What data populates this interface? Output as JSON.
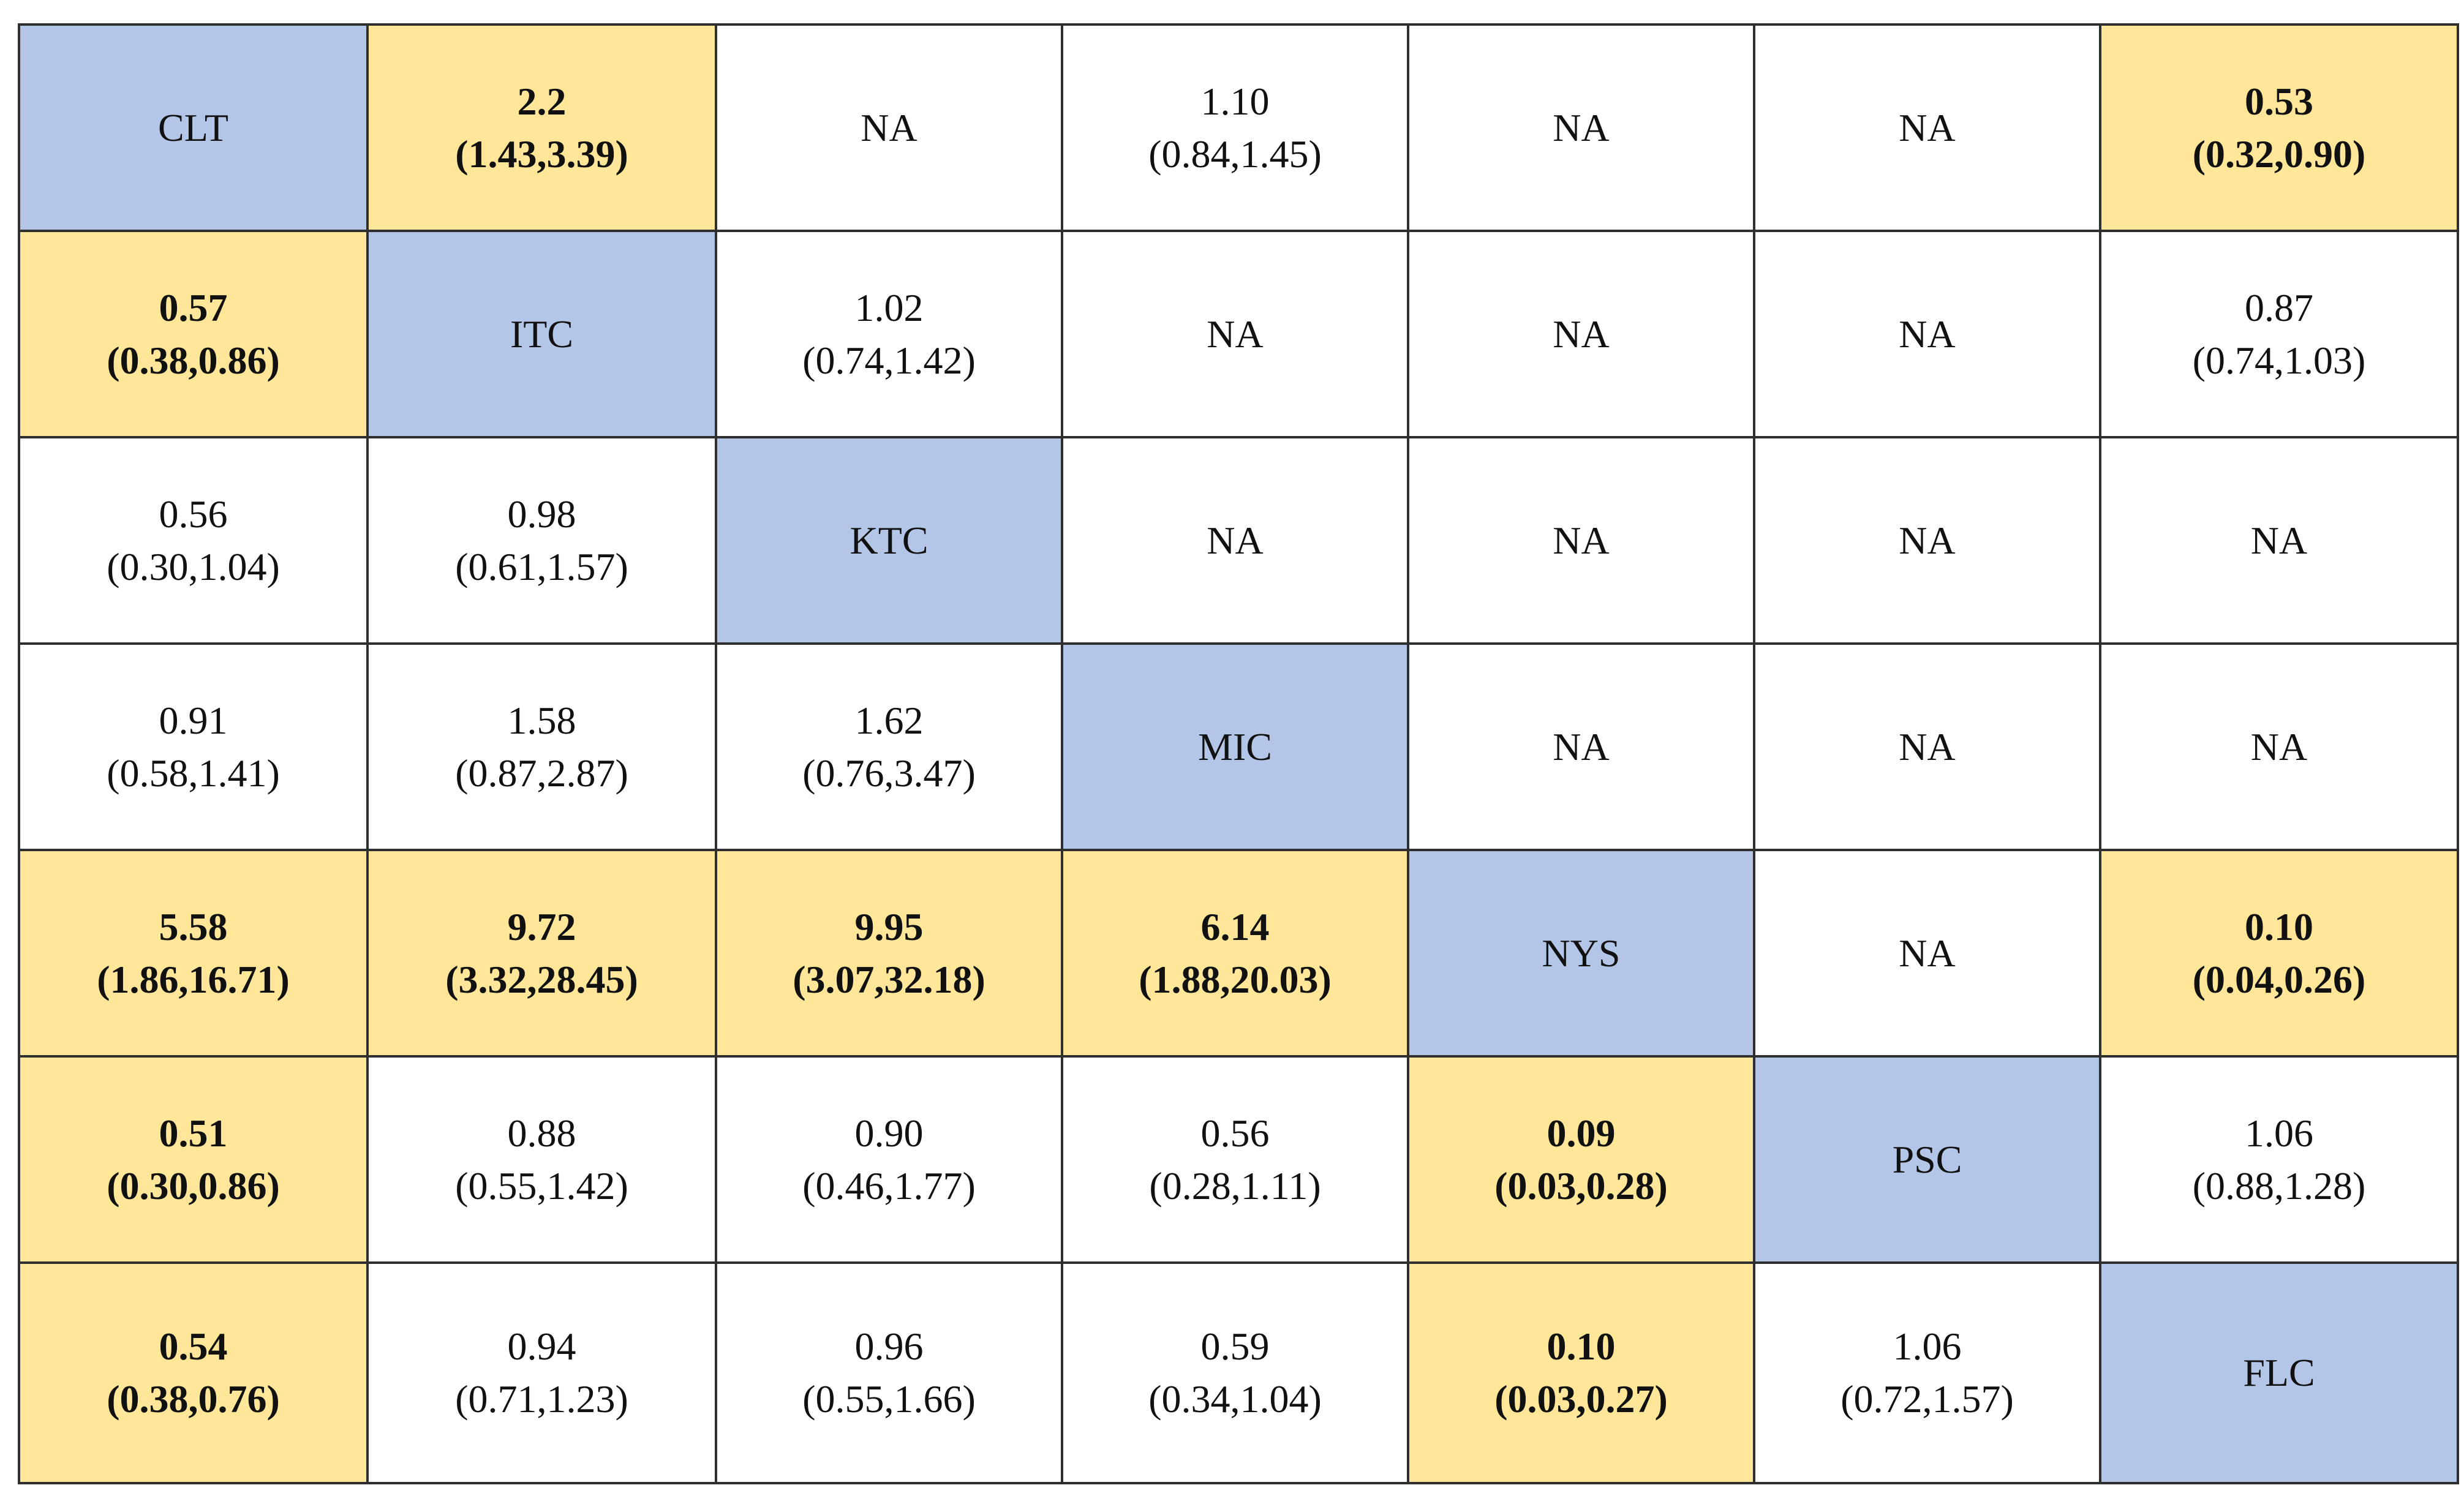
{
  "table": {
    "rows": [
      [
        {
          "type": "diag",
          "label": "CLT"
        },
        {
          "type": "sig",
          "est": "2.2",
          "ci": "(1.43,3.39)"
        },
        {
          "type": "na",
          "label": "NA"
        },
        {
          "type": "plain",
          "est": "1.10",
          "ci": "(0.84,1.45)"
        },
        {
          "type": "na",
          "label": "NA"
        },
        {
          "type": "na",
          "label": "NA"
        },
        {
          "type": "sig",
          "est": "0.53",
          "ci": "(0.32,0.90)"
        }
      ],
      [
        {
          "type": "sig",
          "est": "0.57",
          "ci": "(0.38,0.86)"
        },
        {
          "type": "diag",
          "label": "ITC"
        },
        {
          "type": "plain",
          "est": "1.02",
          "ci": "(0.74,1.42)"
        },
        {
          "type": "na",
          "label": "NA"
        },
        {
          "type": "na",
          "label": "NA"
        },
        {
          "type": "na",
          "label": "NA"
        },
        {
          "type": "plain",
          "est": "0.87",
          "ci": "(0.74,1.03)"
        }
      ],
      [
        {
          "type": "plain",
          "est": "0.56",
          "ci": "(0.30,1.04)"
        },
        {
          "type": "plain",
          "est": "0.98",
          "ci": "(0.61,1.57)"
        },
        {
          "type": "diag",
          "label": "KTC"
        },
        {
          "type": "na",
          "label": "NA"
        },
        {
          "type": "na",
          "label": "NA"
        },
        {
          "type": "na",
          "label": "NA"
        },
        {
          "type": "na",
          "label": "NA"
        }
      ],
      [
        {
          "type": "plain",
          "est": "0.91",
          "ci": "(0.58,1.41)"
        },
        {
          "type": "plain",
          "est": "1.58",
          "ci": "(0.87,2.87)"
        },
        {
          "type": "plain",
          "est": "1.62",
          "ci": "(0.76,3.47)"
        },
        {
          "type": "diag",
          "label": "MIC"
        },
        {
          "type": "na",
          "label": "NA"
        },
        {
          "type": "na",
          "label": "NA"
        },
        {
          "type": "na",
          "label": "NA"
        }
      ],
      [
        {
          "type": "sig",
          "est": "5.58",
          "ci": "(1.86,16.71)"
        },
        {
          "type": "sig",
          "est": "9.72",
          "ci": "(3.32,28.45)"
        },
        {
          "type": "sig",
          "est": "9.95",
          "ci": "(3.07,32.18)"
        },
        {
          "type": "sig",
          "est": "6.14",
          "ci": "(1.88,20.03)"
        },
        {
          "type": "diag",
          "label": "NYS"
        },
        {
          "type": "na",
          "label": "NA"
        },
        {
          "type": "sig",
          "est": "0.10",
          "ci": "(0.04,0.26)"
        }
      ],
      [
        {
          "type": "sig",
          "est": "0.51",
          "ci": "(0.30,0.86)"
        },
        {
          "type": "plain",
          "est": "0.88",
          "ci": "(0.55,1.42)"
        },
        {
          "type": "plain",
          "est": "0.90",
          "ci": "(0.46,1.77)"
        },
        {
          "type": "plain",
          "est": "0.56",
          "ci": "(0.28,1.11)"
        },
        {
          "type": "sig",
          "est": "0.09",
          "ci": "(0.03,0.28)"
        },
        {
          "type": "diag",
          "label": "PSC"
        },
        {
          "type": "plain",
          "est": "1.06",
          "ci": "(0.88,1.28)"
        }
      ],
      [
        {
          "type": "sig",
          "est": "0.54",
          "ci": "(0.38,0.76)"
        },
        {
          "type": "plain",
          "est": "0.94",
          "ci": "(0.71,1.23)"
        },
        {
          "type": "plain",
          "est": "0.96",
          "ci": "(0.55,1.66)"
        },
        {
          "type": "plain",
          "est": "0.59",
          "ci": "(0.34,1.04)"
        },
        {
          "type": "sig",
          "est": "0.10",
          "ci": "(0.03,0.27)"
        },
        {
          "type": "plain",
          "est": "1.06",
          "ci": "(0.72,1.57)"
        },
        {
          "type": "diag",
          "label": "FLC"
        }
      ]
    ]
  },
  "colors": {
    "diagonal_fill": "#b4c6e7",
    "significant_fill": "#ffe699",
    "plain_fill": "#ffffff",
    "border": "#2f2f2f"
  }
}
